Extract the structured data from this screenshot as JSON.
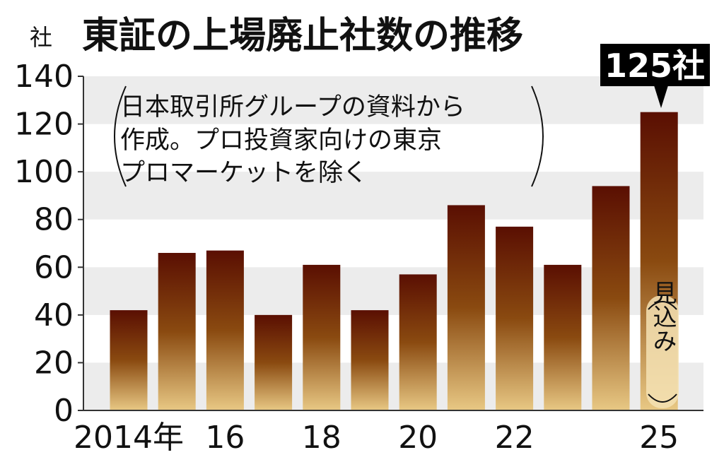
{
  "chart_data": {
    "type": "bar",
    "title": "東証の上場廃止社数の推移",
    "unit": "社",
    "categories": [
      "2014",
      "2015",
      "2016",
      "2017",
      "2018",
      "2019",
      "2020",
      "2021",
      "2022",
      "2023",
      "2024",
      "2025"
    ],
    "values": [
      42,
      66,
      67,
      40,
      61,
      42,
      57,
      86,
      77,
      61,
      94,
      125
    ],
    "x_tick_labels": [
      {
        "index": 0,
        "label": "2014年"
      },
      {
        "index": 2,
        "label": "16"
      },
      {
        "index": 4,
        "label": "18"
      },
      {
        "index": 6,
        "label": "20"
      },
      {
        "index": 8,
        "label": "22"
      },
      {
        "index": 11,
        "label": "25"
      }
    ],
    "ylim": [
      0,
      140
    ],
    "y_ticks": [
      0,
      20,
      40,
      60,
      80,
      100,
      120,
      140
    ],
    "grid": "alternating bands",
    "note_lines": [
      "日本取引所グループの資料から",
      "作成。プロ投資家向けの東京",
      "プロマーケットを除く"
    ],
    "callout": "125社",
    "estimate_label": "見込み",
    "colors": {
      "bar_top": "#5a0f02",
      "bar_mid": "#8a4a10",
      "bar_bottom": "#e8c884",
      "band": "#ececec",
      "callout_bg": "#000000"
    }
  }
}
